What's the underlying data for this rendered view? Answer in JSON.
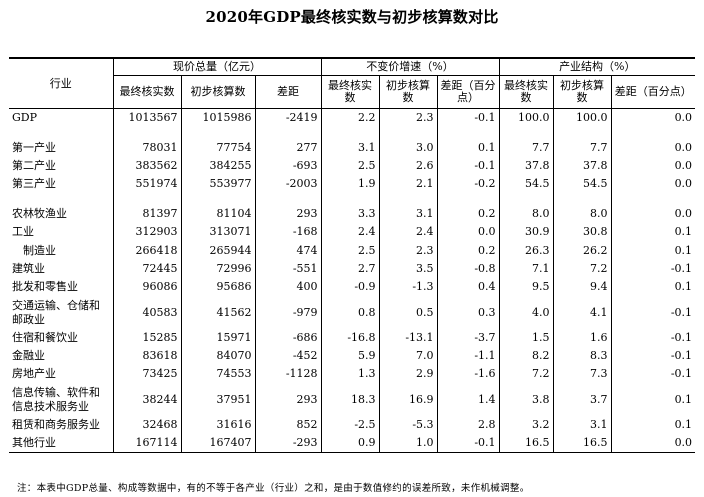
{
  "title": "2020年GDP最终核实数与初步核算数对比",
  "header": {
    "industry": "行业",
    "group_current": "现价总量（亿元）",
    "group_growth": "不变价增速（%）",
    "group_structure": "产业结构（%）",
    "sub_final": "最终核实数",
    "sub_prelim": "初步核算数",
    "sub_gap": "差距",
    "sub_gap_pct": "差距（百分点）"
  },
  "rows": [
    {
      "name": "GDP",
      "v": [
        "1013567",
        "1015986",
        "-2419",
        "2.2",
        "2.3",
        "-0.1",
        "100.0",
        "100.0",
        "0.0"
      ]
    },
    {
      "name": "第一产业",
      "v": [
        "78031",
        "77754",
        "277",
        "3.1",
        "3.0",
        "0.1",
        "7.7",
        "7.7",
        "0.0"
      ]
    },
    {
      "name": "第二产业",
      "v": [
        "383562",
        "384255",
        "-693",
        "2.5",
        "2.6",
        "-0.1",
        "37.8",
        "37.8",
        "0.0"
      ]
    },
    {
      "name": "第三产业",
      "v": [
        "551974",
        "553977",
        "-2003",
        "1.9",
        "2.1",
        "-0.2",
        "54.5",
        "54.5",
        "0.0"
      ]
    },
    {
      "name": "农林牧渔业",
      "v": [
        "81397",
        "81104",
        "293",
        "3.3",
        "3.1",
        "0.2",
        "8.0",
        "8.0",
        "0.0"
      ]
    },
    {
      "name": "工业",
      "v": [
        "312903",
        "313071",
        "-168",
        "2.4",
        "2.4",
        "0.0",
        "30.9",
        "30.8",
        "0.1"
      ]
    },
    {
      "name": "制造业",
      "v": [
        "266418",
        "265944",
        "474",
        "2.5",
        "2.3",
        "0.2",
        "26.3",
        "26.2",
        "0.1"
      ]
    },
    {
      "name": "建筑业",
      "v": [
        "72445",
        "72996",
        "-551",
        "2.7",
        "3.5",
        "-0.8",
        "7.1",
        "7.2",
        "-0.1"
      ]
    },
    {
      "name": "批发和零售业",
      "v": [
        "96086",
        "95686",
        "400",
        "-0.9",
        "-1.3",
        "0.4",
        "9.5",
        "9.4",
        "0.1"
      ]
    },
    {
      "name": "交通运输、仓储和邮政业",
      "v": [
        "40583",
        "41562",
        "-979",
        "0.8",
        "0.5",
        "0.3",
        "4.0",
        "4.1",
        "-0.1"
      ]
    },
    {
      "name": "住宿和餐饮业",
      "v": [
        "15285",
        "15971",
        "-686",
        "-16.8",
        "-13.1",
        "-3.7",
        "1.5",
        "1.6",
        "-0.1"
      ]
    },
    {
      "name": "金融业",
      "v": [
        "83618",
        "84070",
        "-452",
        "5.9",
        "7.0",
        "-1.1",
        "8.2",
        "8.3",
        "-0.1"
      ]
    },
    {
      "name": "房地产业",
      "v": [
        "73425",
        "74553",
        "-1128",
        "1.3",
        "2.9",
        "-1.6",
        "7.2",
        "7.3",
        "-0.1"
      ]
    },
    {
      "name": "信息传输、软件和信息技术服务业",
      "v": [
        "38244",
        "37951",
        "293",
        "18.3",
        "16.9",
        "1.4",
        "3.8",
        "3.7",
        "0.1"
      ]
    },
    {
      "name": "租赁和商务服务业",
      "v": [
        "32468",
        "31616",
        "852",
        "-2.5",
        "-5.3",
        "2.8",
        "3.2",
        "3.1",
        "0.1"
      ]
    },
    {
      "name": "其他行业",
      "v": [
        "167114",
        "167407",
        "-293",
        "0.9",
        "1.0",
        "-0.1",
        "16.5",
        "16.5",
        "0.0"
      ]
    }
  ],
  "note": "注：本表中GDP总量、构成等数据中，有的不等于各产业（行业）之和，是由于数值修约的误差所致，未作机械调整。"
}
